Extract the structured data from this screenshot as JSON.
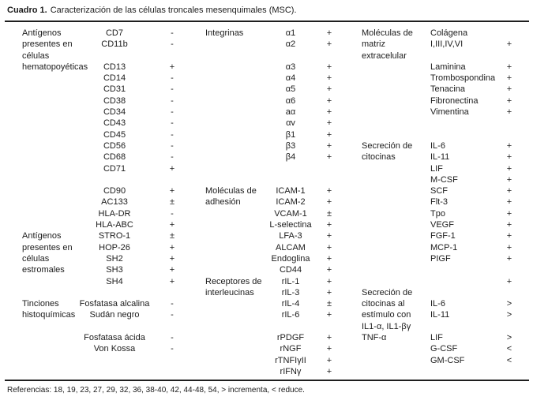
{
  "page": {
    "title_label": "Cuadro 1.",
    "title_text": "Caracterización de las células troncales mesenquimales (MSC).",
    "references": "Referencias: 18, 19, 23, 27, 29, 32, 36, 38-40, 42, 44-48, 54, > incrementa, < reduce."
  },
  "table": {
    "section_categories": [
      "Antígenos presentes en células hematopoyéticas",
      "Antígenos presentes en células estromales",
      "Tinciones histoquímicas",
      "Integrinas",
      "Moléculas de adhesión",
      "Receptores de interleucinas",
      "Moléculas de matriz extracelular",
      "Secreción de citocinas",
      "Secreción de citocinas al estímulo con IL1-α, IL1-βγ TNF-α"
    ],
    "rows": [
      [
        "Antígenos",
        "CD7",
        "-",
        "Integrinas",
        "α1",
        "+",
        "Moléculas de",
        "Colágena",
        ""
      ],
      [
        "presentes en",
        "CD11b",
        "-",
        "",
        "α2",
        "+",
        "matriz",
        "I,III,IV,VI",
        "+"
      ],
      [
        "células",
        "",
        "",
        "",
        "",
        "",
        "extracelular",
        "",
        ""
      ],
      [
        "hematopoyéticas",
        "CD13",
        "+",
        "",
        "α3",
        "+",
        "",
        "Laminina",
        "+"
      ],
      [
        "",
        "CD14",
        "-",
        "",
        "α4",
        "+",
        "",
        "Trombospondina",
        "+"
      ],
      [
        "",
        "CD31",
        "-",
        "",
        "α5",
        "+",
        "",
        "Tenacina",
        "+"
      ],
      [
        "",
        "CD38",
        "-",
        "",
        "α6",
        "+",
        "",
        "Fibronectina",
        "+"
      ],
      [
        "",
        "CD34",
        "-",
        "",
        "aα",
        "+",
        "",
        "Vimentina",
        "+"
      ],
      [
        "",
        "CD43",
        "-",
        "",
        "αv",
        "+",
        "",
        "",
        ""
      ],
      [
        "",
        "CD45",
        "-",
        "",
        "β1",
        "+",
        "",
        "",
        ""
      ],
      [
        "",
        "CD56",
        "-",
        "",
        "β3",
        "+",
        "Secreción de",
        "IL-6",
        "+"
      ],
      [
        "",
        "CD68",
        "-",
        "",
        "β4",
        "+",
        "citocinas",
        "IL-11",
        "+"
      ],
      [
        "",
        "CD71",
        "+",
        "",
        "",
        "",
        "",
        "LIF",
        "+"
      ],
      [
        "",
        "",
        "",
        "",
        "",
        "",
        "",
        "M-CSF",
        "+"
      ],
      [
        "",
        "CD90",
        "+",
        "Moléculas de",
        "ICAM-1",
        "+",
        "",
        "SCF",
        "+"
      ],
      [
        "",
        "AC133",
        "±",
        "adhesión",
        "ICAM-2",
        "+",
        "",
        "Flt-3",
        "+"
      ],
      [
        "",
        "HLA-DR",
        "-",
        "",
        "VCAM-1",
        "±",
        "",
        "Tpo",
        "+"
      ],
      [
        "",
        "HLA-ABC",
        "+",
        "",
        "L-selectina",
        "+",
        "",
        "VEGF",
        "+"
      ],
      [
        "Antígenos",
        "STRO-1",
        "±",
        "",
        "LFA-3",
        "+",
        "",
        "FGF-1",
        "+"
      ],
      [
        "presentes en",
        "HOP-26",
        "+",
        "",
        "ALCAM",
        "+",
        "",
        "MCP-1",
        "+"
      ],
      [
        "células",
        "SH2",
        "+",
        "",
        "Endoglina",
        "+",
        "",
        "PIGF",
        "+"
      ],
      [
        "estromales",
        "SH3",
        "+",
        "",
        "CD44",
        "+",
        "",
        "",
        ""
      ],
      [
        "",
        "SH4",
        "+",
        "Receptores de",
        "rIL-1",
        "+",
        "",
        "",
        "+"
      ],
      [
        "",
        "",
        "",
        "interleucinas",
        "rIL-3",
        "+",
        "Secreción de",
        "",
        ""
      ],
      [
        "Tinciones",
        "Fosfatasa alcalina",
        "-",
        "",
        "rIL-4",
        "±",
        "citocinas al",
        "IL-6",
        ">"
      ],
      [
        "histoquímicas",
        "Sudán negro",
        "-",
        "",
        "rIL-6",
        "+",
        "estímulo con",
        "IL-11",
        ">"
      ],
      [
        "",
        "",
        "",
        "",
        "",
        "",
        "IL1-α, IL1-βγ",
        "",
        ""
      ],
      [
        "",
        "Fosfatasa ácida",
        "-",
        "",
        "rPDGF",
        "+",
        "TNF-α",
        "LIF",
        ">"
      ],
      [
        "",
        "Von Kossa",
        "-",
        "",
        "rNGF",
        "+",
        "",
        "G-CSF",
        "<"
      ],
      [
        "",
        "",
        "",
        "",
        "rTNFIγII",
        "+",
        "",
        "GM-CSF",
        "<"
      ],
      [
        "",
        "",
        "",
        "",
        "rIFNγ",
        "+",
        "",
        "",
        ""
      ]
    ]
  }
}
